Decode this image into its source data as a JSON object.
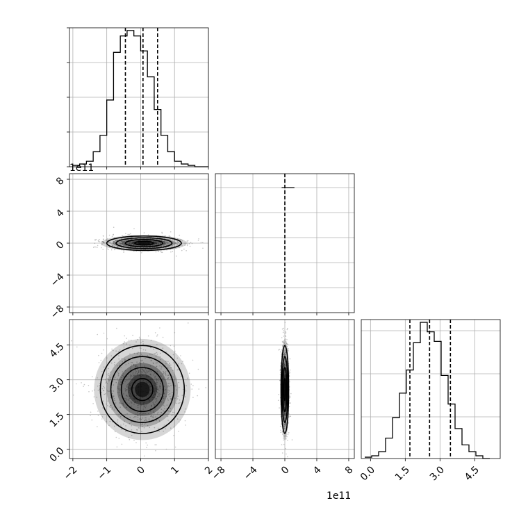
{
  "chart_data": {
    "type": "corner",
    "parameters": [
      {
        "range": [
          -2.1,
          2.0
        ],
        "ticks": [
          -2,
          -1,
          0,
          1,
          2
        ],
        "offset_label": ""
      },
      {
        "range": [
          -8.7,
          8.7
        ],
        "ticks": [
          -8,
          -4,
          0,
          4,
          8
        ],
        "offset_label": "1e11"
      },
      {
        "range": [
          -0.4,
          5.6
        ],
        "ticks": [
          0.0,
          1.5,
          3.0,
          4.5
        ],
        "offset_label": ""
      }
    ],
    "diag": [
      {
        "bins": [
          -2.0,
          -1.8,
          -1.6,
          -1.4,
          -1.2,
          -1.0,
          -0.8,
          -0.6,
          -0.4,
          -0.2,
          0.0,
          0.2,
          0.4,
          0.6,
          0.8,
          1.0,
          1.2,
          1.4,
          1.6,
          1.8,
          2.0
        ],
        "counts": [
          0.01,
          0.02,
          0.04,
          0.11,
          0.23,
          0.49,
          0.84,
          0.96,
          1.0,
          0.96,
          0.85,
          0.66,
          0.42,
          0.23,
          0.11,
          0.04,
          0.02,
          0.01,
          0.0,
          0.0
        ],
        "quantiles": [
          -0.45,
          0.07,
          0.5
        ],
        "ylim": [
          0,
          1.02
        ]
      },
      {
        "bins": [
          -0.4,
          0.4,
          1.2
        ],
        "counts": [
          0.9,
          0.9
        ],
        "quantiles": [
          0.0
        ],
        "ylim": [
          0,
          1.0
        ]
      },
      {
        "bins": [
          -0.25,
          0.05,
          0.35,
          0.65,
          0.95,
          1.25,
          1.55,
          1.85,
          2.15,
          2.45,
          2.75,
          3.05,
          3.35,
          3.65,
          3.95,
          4.25,
          4.55,
          4.85,
          5.15
        ],
        "counts": [
          0.01,
          0.02,
          0.05,
          0.15,
          0.3,
          0.48,
          0.65,
          0.85,
          1.0,
          0.93,
          0.86,
          0.61,
          0.4,
          0.22,
          0.1,
          0.05,
          0.02,
          0.0
        ],
        "quantiles": [
          1.7,
          2.55,
          3.45
        ],
        "ylim": [
          0,
          1.02
        ]
      }
    ],
    "panels": [
      {
        "row": 1,
        "col": 0,
        "center": [
          0.1,
          0.0
        ],
        "sigma": [
          0.55,
          0.45
        ]
      },
      {
        "row": 2,
        "col": 0,
        "center": [
          0.05,
          2.58
        ],
        "sigma": [
          0.62,
          0.95
        ]
      },
      {
        "row": 2,
        "col": 1,
        "center": [
          0.0,
          2.58
        ],
        "sigma": [
          0.24,
          0.95
        ]
      }
    ]
  }
}
